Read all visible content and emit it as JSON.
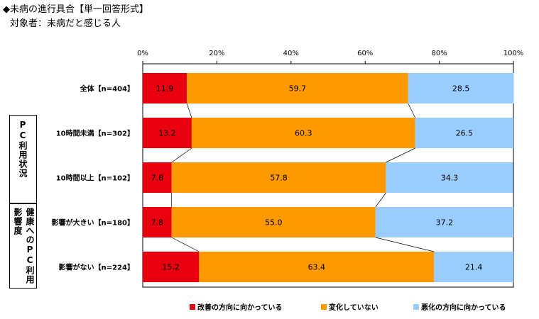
{
  "header": {
    "title": "◆未病の進行具合【単一回答形式】",
    "subtitle": "対象者：未病だと感じる人"
  },
  "groups": [
    {
      "label": "PC利用状況"
    },
    {
      "label": "健康へのPC利用影響度"
    }
  ],
  "chart_data": {
    "type": "bar",
    "orientation": "horizontal",
    "stacked": true,
    "percent": true,
    "categories": [
      "全体【n=404】",
      "10時間未満【n=302】",
      "10時間以上【n=102】",
      "影響が大きい【n=180】",
      "影響がない【n=224】"
    ],
    "series": [
      {
        "name": "改善の方向に向かっている",
        "color": "#e8000e",
        "values": [
          11.9,
          13.2,
          7.8,
          7.8,
          15.2
        ]
      },
      {
        "name": "変化していない",
        "color": "#ff9900",
        "values": [
          59.7,
          60.3,
          57.8,
          55.0,
          63.4
        ]
      },
      {
        "name": "悪化の方向に向かっている",
        "color": "#99ccff",
        "values": [
          28.5,
          26.5,
          34.3,
          37.2,
          21.4
        ]
      }
    ],
    "xaxis": {
      "min": 0,
      "max": 100,
      "ticks": [
        "0%",
        "20%",
        "40%",
        "60%",
        "80%",
        "100%"
      ]
    },
    "legend_position": "bottom",
    "series_connectors": true
  }
}
